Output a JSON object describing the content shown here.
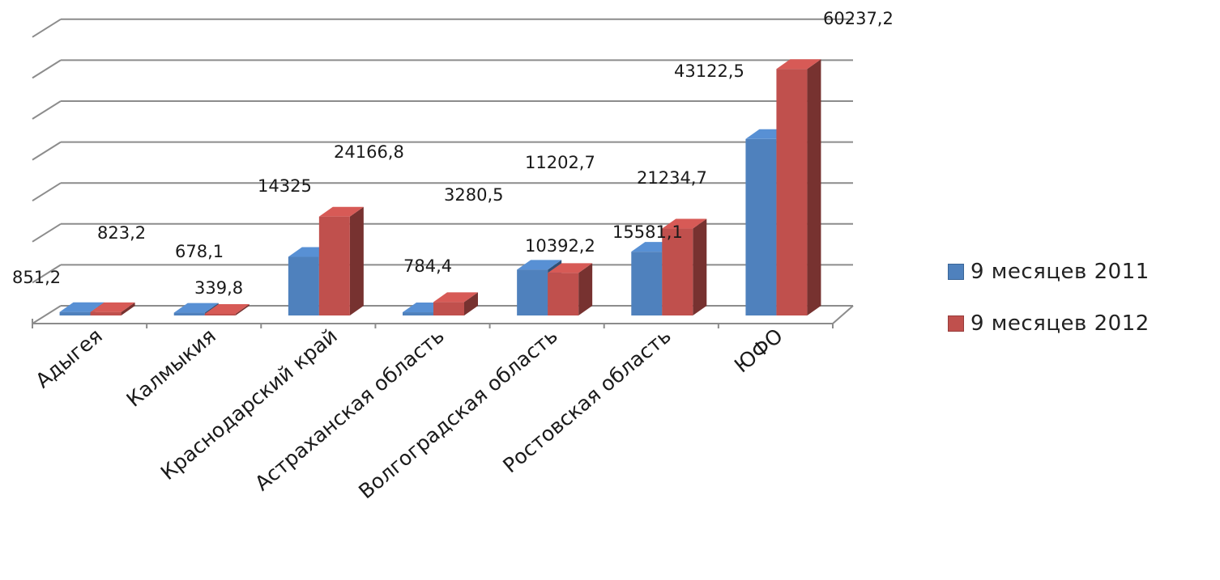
{
  "chart_data": {
    "type": "bar",
    "categories": [
      "Адыгея",
      "Калмыкия",
      "Краснодарский край",
      "Астраханская область",
      "Волгоградская область",
      "Ростовская область",
      "ЮФО"
    ],
    "series": [
      {
        "name": "9 месяцев 2011",
        "color": "#4F81BD",
        "values": [
          851.2,
          678.1,
          14325,
          784.4,
          11202.7,
          15581.1,
          43122.5
        ]
      },
      {
        "name": "9 месяцев 2012",
        "color": "#C0504D",
        "values": [
          823.2,
          339.8,
          24166.8,
          3280.5,
          10392.2,
          21234.7,
          60237.2
        ]
      }
    ],
    "data_labels": {
      "s1": [
        "851,2",
        "678,1",
        "14325",
        "784,4",
        "11202,7",
        "15581,1",
        "43122,5"
      ],
      "s2": [
        "823,2",
        "339,8",
        "24166,8",
        "3280,5",
        "10392,2",
        "21234,7",
        "60237,2"
      ]
    },
    "ylim": [
      0,
      70000
    ],
    "grid": true,
    "legend_position": "right"
  }
}
